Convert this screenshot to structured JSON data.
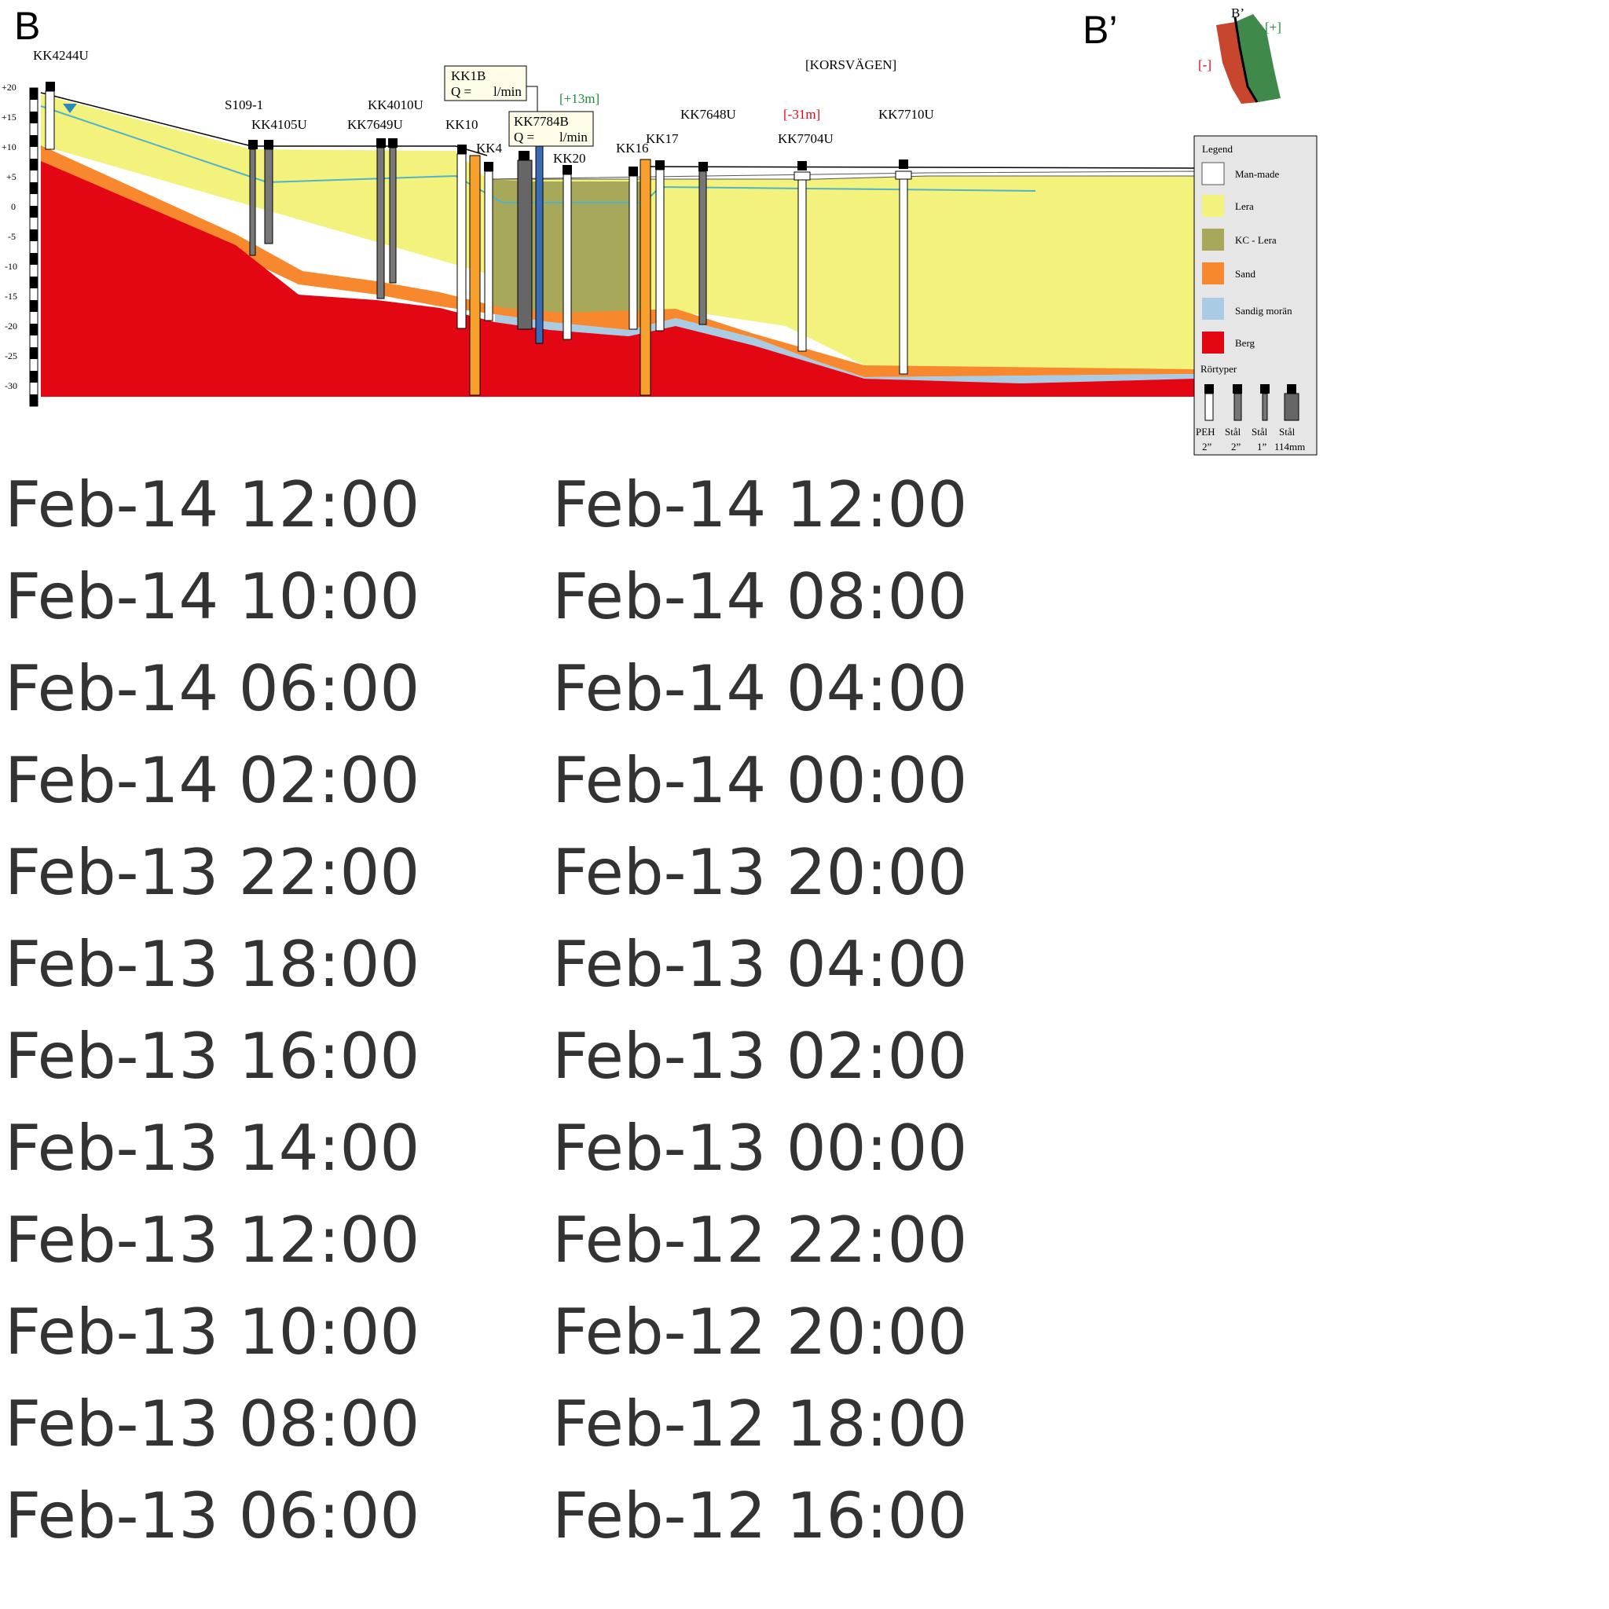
{
  "section": {
    "start_label": "B",
    "end_label": "B’",
    "street_label": "[KORSVÄGEN]",
    "depth_ticks": [
      "+20",
      "+15",
      "+10",
      "+5",
      "0",
      "-5",
      "-10",
      "-15",
      "-20",
      "-25",
      "-30"
    ]
  },
  "wells": [
    {
      "name": "KK4244U"
    },
    {
      "name": "S109-1"
    },
    {
      "name": "KK4105U"
    },
    {
      "name": "KK4010U"
    },
    {
      "name": "KK7649U"
    },
    {
      "name": "KK10"
    },
    {
      "name": "KK4"
    },
    {
      "name": "KK20"
    },
    {
      "name": "KK16"
    },
    {
      "name": "KK17"
    },
    {
      "name": "KK7648U"
    },
    {
      "name": "KK7704U"
    },
    {
      "name": "KK7710U"
    }
  ],
  "flow_boxes": [
    {
      "well": "KK1B",
      "q_label": "Q =",
      "unit": "l/min"
    },
    {
      "well": "KK7784B",
      "q_label": "Q =",
      "unit": "l/min"
    }
  ],
  "annotations": {
    "plus_13": "[+13m]",
    "minus_31": "[-31m]"
  },
  "inset_map": {
    "label_end": "B’",
    "plus": "[+]",
    "minus": "[-]"
  },
  "legend": {
    "title": "Legend",
    "items": [
      {
        "label": "Man-made",
        "color": "#ffffff"
      },
      {
        "label": "Lera",
        "color": "#f2f27c"
      },
      {
        "label": "KC - Lera",
        "color": "#a8a85a"
      },
      {
        "label": "Sand",
        "color": "#f7882e"
      },
      {
        "label": "Sandig morän",
        "color": "#a9cbe3"
      },
      {
        "label": "Berg",
        "color": "#e30613"
      }
    ],
    "pipe_title": "Rörtyper",
    "pipe_types": [
      {
        "material": "PEH",
        "size": "2”"
      },
      {
        "material": "Stål",
        "size": "2”"
      },
      {
        "material": "Stål",
        "size": "1”"
      },
      {
        "material": "Stål",
        "size": "114mm"
      }
    ]
  },
  "timestamps": {
    "left": [
      "Feb-14 12:00",
      "Feb-14 10:00",
      "Feb-14 06:00",
      "Feb-14 02:00",
      "Feb-13 22:00",
      "Feb-13 18:00",
      "Feb-13 16:00",
      "Feb-13 14:00",
      "Feb-13 12:00",
      "Feb-13 10:00",
      "Feb-13 08:00",
      "Feb-13 06:00"
    ],
    "right": [
      "Feb-14 12:00",
      "Feb-14 08:00",
      "Feb-14 04:00",
      "Feb-14 00:00",
      "Feb-13 20:00",
      "Feb-13 04:00",
      "Feb-13 02:00",
      "Feb-13 00:00",
      "Feb-12 22:00",
      "Feb-12 20:00",
      "Feb-12 18:00",
      "Feb-12 16:00"
    ]
  }
}
